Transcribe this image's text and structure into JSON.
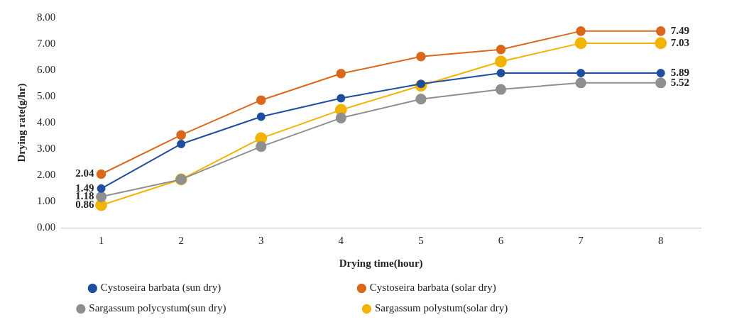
{
  "chart_data": {
    "type": "line",
    "xlabel": "Drying time(hour)",
    "ylabel": "Drying rate(g/hr)",
    "categories": [
      "1",
      "2",
      "3",
      "4",
      "5",
      "6",
      "7",
      "8"
    ],
    "ylim": [
      0,
      8
    ],
    "yticks": [
      {
        "value": 0,
        "label": "0.00"
      },
      {
        "value": 1,
        "label": "1.00"
      },
      {
        "value": 2,
        "label": "2.00"
      },
      {
        "value": 3,
        "label": "3.00"
      },
      {
        "value": 4,
        "label": "4.00"
      },
      {
        "value": 5,
        "label": "5.00"
      },
      {
        "value": 6,
        "label": "6.00"
      },
      {
        "value": 7,
        "label": "7.00"
      },
      {
        "value": 8,
        "label": "8.00"
      }
    ],
    "grid": false,
    "legend": "bottom",
    "marker": "circle",
    "line_style": "solid",
    "series": [
      {
        "name": "Cystoseira barbata (sun dry)",
        "color": "#1f4e9e",
        "values": [
          1.49,
          3.19,
          4.23,
          4.93,
          5.48,
          5.89,
          5.89,
          5.89
        ],
        "value_labels": [
          "1.49",
          null,
          null,
          null,
          null,
          null,
          null,
          "5.89"
        ]
      },
      {
        "name": "Cystoseira barbata (solar dry)",
        "color": "#d9681c",
        "values": [
          2.04,
          3.53,
          4.86,
          5.87,
          6.52,
          6.79,
          7.49,
          7.49
        ],
        "value_labels": [
          "2.04",
          null,
          null,
          null,
          null,
          null,
          null,
          "7.49"
        ]
      },
      {
        "name": "Sargassum polycystum(sun dry)",
        "color": "#8f8f8f",
        "values": [
          1.18,
          1.84,
          3.09,
          4.18,
          4.9,
          5.27,
          5.52,
          5.52
        ],
        "value_labels": [
          "1.18",
          null,
          null,
          null,
          null,
          null,
          null,
          "5.52"
        ]
      },
      {
        "name": "Sargassum polystum(solar dry)",
        "color": "#f2b400",
        "values": [
          0.86,
          1.84,
          3.41,
          4.49,
          5.41,
          6.33,
          7.03,
          7.03
        ],
        "value_labels": [
          "0.86",
          null,
          null,
          null,
          null,
          null,
          null,
          "7.03"
        ]
      }
    ]
  }
}
